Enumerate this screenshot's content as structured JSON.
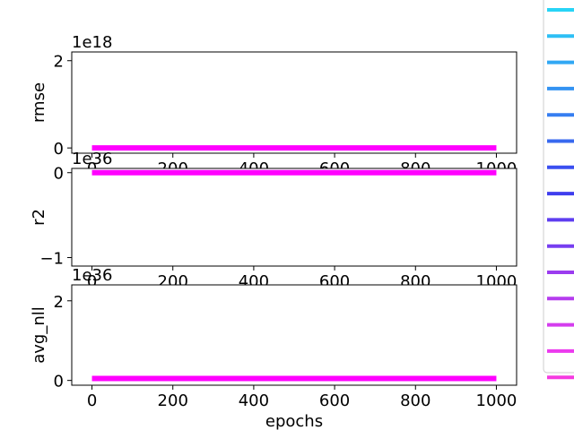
{
  "chart_data": [
    {
      "type": "line",
      "ylabel": "rmse",
      "offset_text": "1e18",
      "xlim": [
        -50,
        1050
      ],
      "ylim": [
        -0.12,
        2.2
      ],
      "xticks": [
        0,
        200,
        400,
        600,
        800,
        1000
      ],
      "xtick_labels": [
        "0",
        "200",
        "400",
        "600",
        "800",
        "1000"
      ],
      "yticks": [
        0,
        2
      ],
      "ytick_labels": [
        "0",
        "2"
      ],
      "series": [
        {
          "x": [
            0,
            1000
          ],
          "y": [
            0,
            0
          ]
        }
      ]
    },
    {
      "type": "line",
      "ylabel": "r2",
      "offset_text": "1e36",
      "xlim": [
        -50,
        1050
      ],
      "ylim": [
        -1.1,
        0.05
      ],
      "xticks": [
        0,
        200,
        400,
        600,
        800,
        1000
      ],
      "xtick_labels": [
        "0",
        "200",
        "400",
        "600",
        "800",
        "1000"
      ],
      "yticks": [
        0,
        -1
      ],
      "ytick_labels": [
        "0",
        "−1"
      ],
      "series": [
        {
          "x": [
            0,
            1000
          ],
          "y": [
            0,
            0
          ]
        }
      ]
    },
    {
      "type": "line",
      "ylabel": "avg_nll",
      "xlabel": "epochs",
      "offset_text": "1e36",
      "xlim": [
        -50,
        1050
      ],
      "ylim": [
        -0.12,
        2.4
      ],
      "xticks": [
        0,
        200,
        400,
        600,
        800,
        1000
      ],
      "xtick_labels": [
        "0",
        "200",
        "400",
        "600",
        "800",
        "1000"
      ],
      "yticks": [
        0,
        2
      ],
      "ytick_labels": [
        "0",
        "2"
      ],
      "series": [
        {
          "x": [
            0,
            1000
          ],
          "y": [
            0.05,
            0.05
          ]
        }
      ]
    }
  ],
  "line_color": "#ff00ff",
  "legend": {
    "placement": "right (clipped)",
    "colors": [
      "#27d4f6",
      "#2dbff5",
      "#31a8f4",
      "#3393f2",
      "#367ef1",
      "#3869ef",
      "#3a4ff0",
      "#3f3eee",
      "#5e3ef0",
      "#773ef0",
      "#9b3cef",
      "#b53cee",
      "#d43cee",
      "#ec3aee",
      "#f53ae0"
    ]
  }
}
